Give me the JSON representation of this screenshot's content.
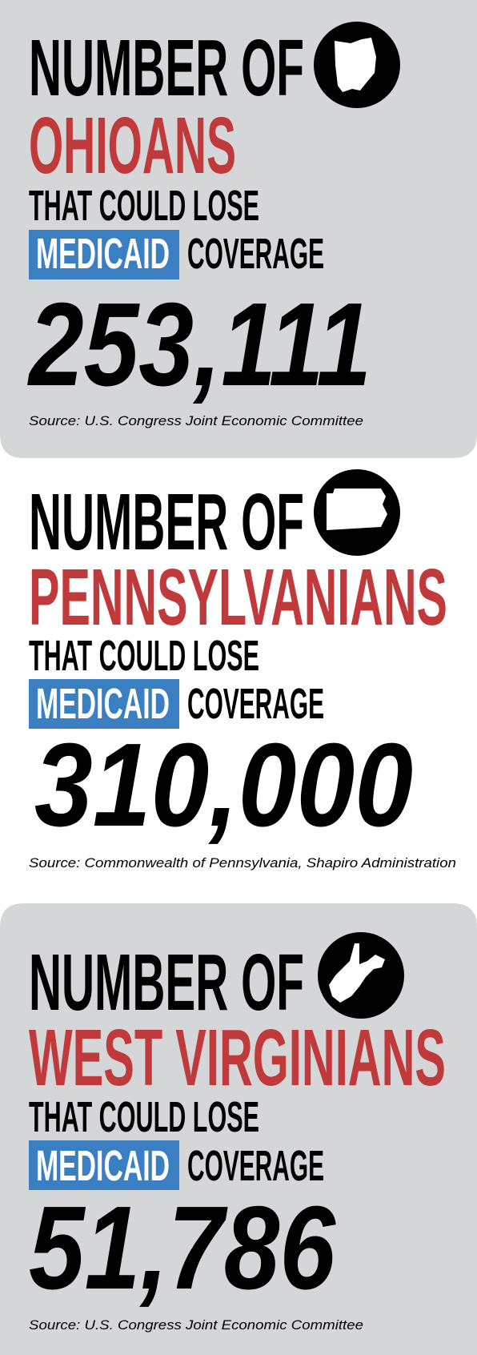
{
  "panels": [
    {
      "heading": "NUMBER OF",
      "group": "OHIOANS",
      "line": "THAT COULD LOSE",
      "highlight": "MEDICAID",
      "suffix": "COVERAGE",
      "number": "253,111",
      "source": "Source: U.S. Congress Joint Economic Committee"
    },
    {
      "heading": "NUMBER OF",
      "group": "PENNSYLVANIANS",
      "line": "THAT COULD LOSE",
      "highlight": "MEDICAID",
      "suffix": "COVERAGE",
      "number": "310,000",
      "source": "Source: Commonwealth of Pennsylvania, Shapiro Administration"
    },
    {
      "heading": "NUMBER OF",
      "group": "WEST VIRGINIANS",
      "line": "THAT COULD LOSE",
      "highlight": "MEDICAID",
      "suffix": "COVERAGE",
      "number": "51,786",
      "source": "Source: U.S. Congress Joint Economic Committee"
    }
  ]
}
